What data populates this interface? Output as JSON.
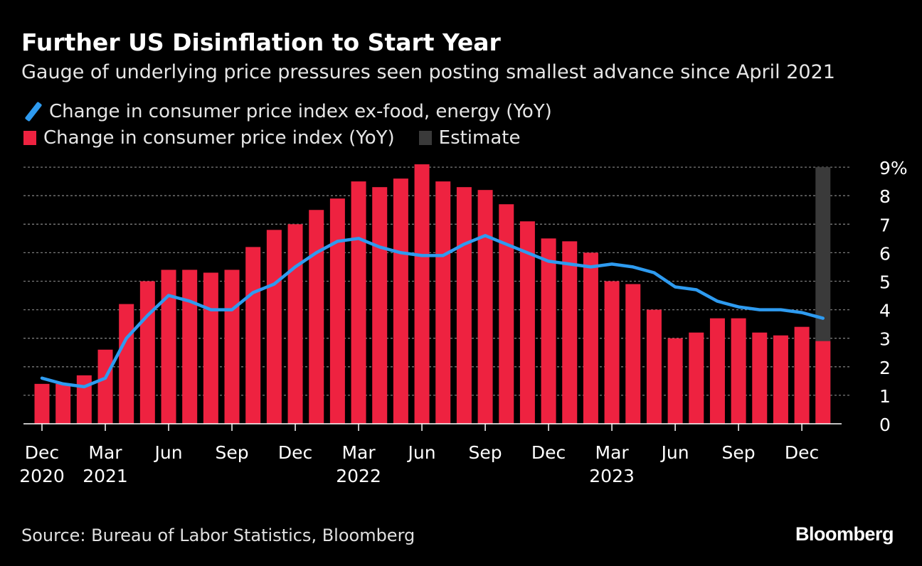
{
  "header": {
    "title": "Further US Disinflation to Start Year",
    "subtitle": "Gauge of underlying price pressures seen posting smallest advance since April 2021"
  },
  "legend": {
    "line_label": "Change in consumer price index ex-food, energy (YoY)",
    "bar_label": "Change in consumer price index (YoY)",
    "estimate_label": "Estimate"
  },
  "colors": {
    "background": "#000000",
    "bar": "#ee2240",
    "line": "#2e9bf0",
    "estimate": "#3a3a3a",
    "grid": "#7a7a7a",
    "text": "#ffffff"
  },
  "footer": {
    "source": "Source: Bureau of Labor Statistics, Bloomberg",
    "brand": "Bloomberg"
  },
  "chart_data": {
    "type": "bar",
    "title": "Further US Disinflation to Start Year",
    "ylim": [
      0,
      9
    ],
    "y_ticks": [
      "0",
      "1",
      "2",
      "3",
      "4",
      "5",
      "6",
      "7",
      "8",
      "9%"
    ],
    "y_axis_side": "right",
    "grid": true,
    "x_tick_labels": [
      {
        "index": 0,
        "line1": "Dec",
        "line2": "2020"
      },
      {
        "index": 3,
        "line1": "Mar",
        "line2": "2021"
      },
      {
        "index": 6,
        "line1": "Jun",
        "line2": ""
      },
      {
        "index": 9,
        "line1": "Sep",
        "line2": ""
      },
      {
        "index": 12,
        "line1": "Dec",
        "line2": ""
      },
      {
        "index": 15,
        "line1": "Mar",
        "line2": "2022"
      },
      {
        "index": 18,
        "line1": "Jun",
        "line2": ""
      },
      {
        "index": 21,
        "line1": "Sep",
        "line2": ""
      },
      {
        "index": 24,
        "line1": "Dec",
        "line2": ""
      },
      {
        "index": 27,
        "line1": "Mar",
        "line2": "2023"
      },
      {
        "index": 30,
        "line1": "Jun",
        "line2": ""
      },
      {
        "index": 33,
        "line1": "Sep",
        "line2": ""
      },
      {
        "index": 36,
        "line1": "Dec",
        "line2": ""
      }
    ],
    "categories": [
      "Dec 2020",
      "Jan 2021",
      "Feb 2021",
      "Mar 2021",
      "Apr 2021",
      "May 2021",
      "Jun 2021",
      "Jul 2021",
      "Aug 2021",
      "Sep 2021",
      "Oct 2021",
      "Nov 2021",
      "Dec 2021",
      "Jan 2022",
      "Feb 2022",
      "Mar 2022",
      "Apr 2022",
      "May 2022",
      "Jun 2022",
      "Jul 2022",
      "Aug 2022",
      "Sep 2022",
      "Oct 2022",
      "Nov 2022",
      "Dec 2022",
      "Jan 2023",
      "Feb 2023",
      "Mar 2023",
      "Apr 2023",
      "May 2023",
      "Jun 2023",
      "Jul 2023",
      "Aug 2023",
      "Sep 2023",
      "Oct 2023",
      "Nov 2023",
      "Dec 2023",
      "Jan 2024"
    ],
    "series": [
      {
        "name": "Change in consumer price index (YoY)",
        "kind": "bar",
        "values": [
          1.4,
          1.4,
          1.7,
          2.6,
          4.2,
          5.0,
          5.4,
          5.4,
          5.3,
          5.4,
          6.2,
          6.8,
          7.0,
          7.5,
          7.9,
          8.5,
          8.3,
          8.6,
          9.1,
          8.5,
          8.3,
          8.2,
          7.7,
          7.1,
          6.5,
          6.4,
          6.0,
          5.0,
          4.9,
          4.0,
          3.0,
          3.2,
          3.7,
          3.7,
          3.2,
          3.1,
          3.4,
          2.9
        ]
      },
      {
        "name": "Change in consumer price index ex-food, energy (YoY)",
        "kind": "line",
        "values": [
          1.6,
          1.4,
          1.3,
          1.6,
          3.0,
          3.8,
          4.5,
          4.3,
          4.0,
          4.0,
          4.6,
          4.9,
          5.5,
          6.0,
          6.4,
          6.5,
          6.2,
          6.0,
          5.9,
          5.9,
          6.3,
          6.6,
          6.3,
          6.0,
          5.7,
          5.6,
          5.5,
          5.6,
          5.5,
          5.3,
          4.8,
          4.7,
          4.3,
          4.1,
          4.0,
          4.0,
          3.9,
          3.7
        ]
      }
    ],
    "estimate": {
      "label": "Estimate",
      "category": "Jan 2024",
      "range": [
        0,
        9
      ]
    }
  }
}
